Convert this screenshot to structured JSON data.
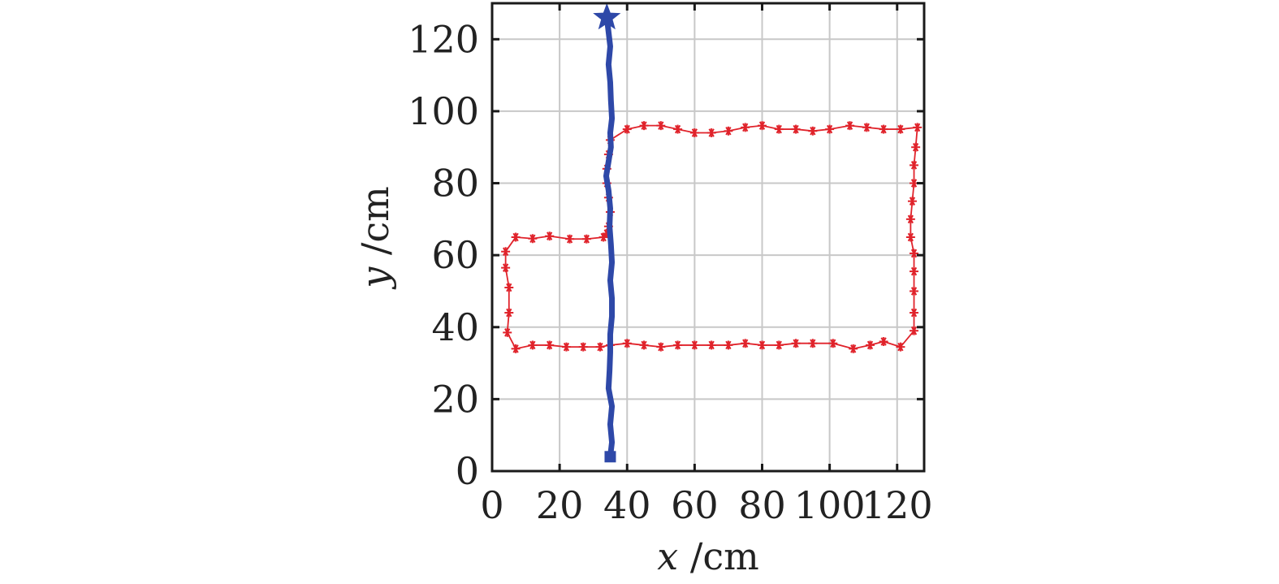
{
  "chart_data": {
    "type": "line",
    "xlabel": {
      "var": "x",
      "unit": " /cm"
    },
    "ylabel": {
      "var": "y",
      "unit": " /cm"
    },
    "xlim": [
      0,
      128
    ],
    "ylim": [
      0,
      130
    ],
    "xticks": [
      "0",
      "20",
      "40",
      "60",
      "80",
      "100",
      "120"
    ],
    "yticks": [
      "0",
      "20",
      "40",
      "60",
      "80",
      "100",
      "120"
    ],
    "grid": true,
    "series": [
      {
        "color": "#e0232b",
        "style": "line-with-asterisk-markers",
        "points": [
          [
            34,
            66
          ],
          [
            33,
            65
          ],
          [
            28,
            64.5
          ],
          [
            23,
            64.5
          ],
          [
            17,
            65.3
          ],
          [
            12,
            64.6
          ],
          [
            7,
            65
          ],
          [
            4,
            61
          ],
          [
            4,
            56.5
          ],
          [
            5,
            51
          ],
          [
            5,
            44
          ],
          [
            4.5,
            38.5
          ],
          [
            7,
            34
          ],
          [
            12,
            35
          ],
          [
            17,
            35
          ],
          [
            22,
            34.5
          ],
          [
            27,
            34.5
          ],
          [
            32,
            34.5
          ],
          [
            35,
            35
          ],
          [
            40,
            35.5
          ],
          [
            45,
            35
          ],
          [
            50,
            34.5
          ],
          [
            55,
            35
          ],
          [
            60,
            35
          ],
          [
            65,
            35
          ],
          [
            70,
            35
          ],
          [
            75,
            35.5
          ],
          [
            80,
            35
          ],
          [
            85,
            35
          ],
          [
            90,
            35.5
          ],
          [
            95,
            35.5
          ],
          [
            101,
            35.5
          ],
          [
            107,
            34
          ],
          [
            112,
            35
          ],
          [
            116,
            36
          ],
          [
            121,
            34.5
          ],
          [
            125,
            39
          ],
          [
            125,
            44
          ],
          [
            125,
            50
          ],
          [
            125,
            55.5
          ],
          [
            125,
            60.5
          ],
          [
            124,
            65
          ],
          [
            124,
            70
          ],
          [
            124.5,
            75
          ],
          [
            125,
            80
          ],
          [
            125,
            85
          ],
          [
            125.5,
            90
          ],
          [
            126,
            95.5
          ],
          [
            121,
            95
          ],
          [
            116,
            95
          ],
          [
            111,
            95.5
          ],
          [
            106,
            96
          ],
          [
            100,
            95
          ],
          [
            95,
            94.5
          ],
          [
            90,
            95
          ],
          [
            85,
            95
          ],
          [
            80,
            96
          ],
          [
            75,
            95.5
          ],
          [
            70,
            94.5
          ],
          [
            65,
            94
          ],
          [
            60,
            94
          ],
          [
            55,
            95
          ],
          [
            50,
            96
          ],
          [
            45,
            96
          ],
          [
            40,
            95
          ],
          [
            35,
            92
          ],
          [
            34.5,
            88
          ],
          [
            34,
            84
          ],
          [
            34,
            80
          ],
          [
            34.5,
            76
          ],
          [
            35,
            72
          ],
          [
            34.5,
            68
          ],
          [
            34,
            66
          ]
        ]
      },
      {
        "color": "#2e48a8",
        "style": "thick-line",
        "points": [
          [
            35,
            4
          ],
          [
            35.5,
            8
          ],
          [
            35,
            13
          ],
          [
            35.5,
            18
          ],
          [
            34.5,
            23
          ],
          [
            34.8,
            28
          ],
          [
            35,
            33
          ],
          [
            35,
            38
          ],
          [
            35.5,
            43
          ],
          [
            35.5,
            48
          ],
          [
            35,
            53
          ],
          [
            35.5,
            58
          ],
          [
            35.2,
            63
          ],
          [
            34.8,
            68
          ],
          [
            35,
            73
          ],
          [
            34.5,
            78
          ],
          [
            33.8,
            82
          ],
          [
            34.5,
            86
          ],
          [
            35.2,
            90
          ],
          [
            35,
            94
          ],
          [
            35.5,
            98
          ],
          [
            35.2,
            103
          ],
          [
            35,
            108
          ],
          [
            34.5,
            113
          ],
          [
            35,
            118
          ],
          [
            34.5,
            122
          ],
          [
            34,
            126
          ]
        ],
        "start_marker": {
          "shape": "square",
          "point": [
            35,
            4
          ]
        },
        "end_marker": {
          "shape": "star",
          "point": [
            34,
            126
          ]
        }
      }
    ]
  }
}
